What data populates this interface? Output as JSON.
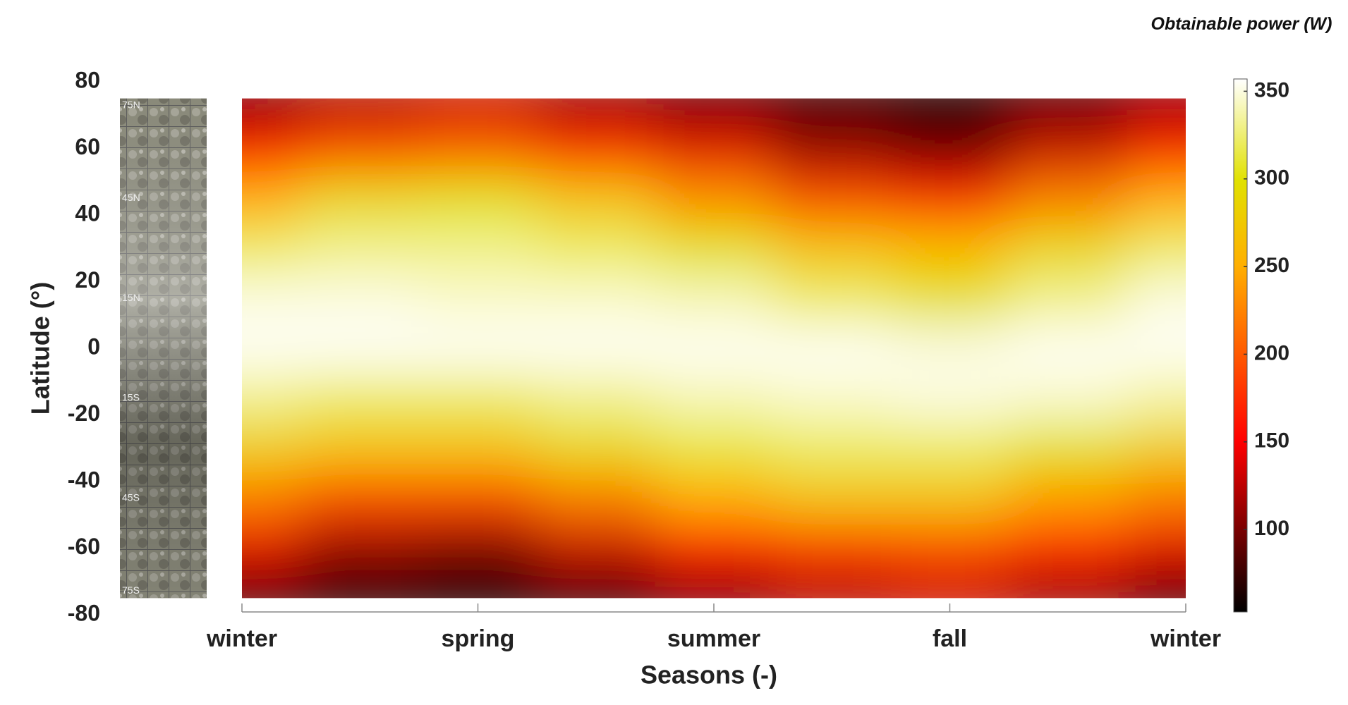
{
  "chart_data": {
    "type": "heatmap",
    "xlabel": "Seasons (-)",
    "ylabel": "Latitude (°)",
    "zlabel": "Obtainable power (W)",
    "map_strip_labels": [
      "75N",
      "45N",
      "15N",
      "15S",
      "45S",
      "75S"
    ],
    "map_strip_lats": [
      75,
      45,
      15,
      -15,
      -45,
      -75
    ],
    "x": [
      0,
      0.5,
      1,
      1.5,
      2,
      2.5,
      3,
      3.5,
      4
    ],
    "y": [
      75,
      60,
      45,
      30,
      15,
      0,
      -15,
      -30,
      -45,
      -60,
      -75
    ],
    "z": [
      [
        100,
        120,
        130,
        110,
        90,
        75,
        60,
        85,
        110
      ],
      [
        160,
        190,
        200,
        170,
        140,
        110,
        95,
        130,
        160
      ],
      [
        250,
        290,
        300,
        270,
        230,
        190,
        170,
        220,
        250
      ],
      [
        320,
        330,
        330,
        320,
        300,
        270,
        260,
        290,
        320
      ],
      [
        350,
        350,
        345,
        345,
        340,
        320,
        300,
        330,
        350
      ],
      [
        355,
        355,
        355,
        355,
        355,
        355,
        350,
        355,
        355
      ],
      [
        330,
        320,
        320,
        330,
        340,
        345,
        350,
        345,
        335
      ],
      [
        280,
        270,
        270,
        290,
        310,
        320,
        320,
        300,
        280
      ],
      [
        220,
        190,
        190,
        220,
        250,
        270,
        270,
        240,
        220
      ],
      [
        140,
        110,
        100,
        130,
        160,
        180,
        190,
        170,
        140
      ],
      [
        80,
        60,
        50,
        70,
        100,
        120,
        130,
        110,
        80
      ]
    ],
    "xlim": [
      0,
      4
    ],
    "xticks": [
      {
        "value": 0,
        "label": "winter"
      },
      {
        "value": 1,
        "label": "spring"
      },
      {
        "value": 2,
        "label": "summer"
      },
      {
        "value": 3,
        "label": "fall"
      },
      {
        "value": 4,
        "label": "winter"
      }
    ],
    "ylim": [
      -80,
      80
    ],
    "yticks": [
      -80,
      -60,
      -40,
      -20,
      0,
      20,
      40,
      60,
      80
    ],
    "zlim": [
      53,
      357
    ],
    "zticks": [
      100,
      150,
      200,
      250,
      300,
      350
    ]
  }
}
